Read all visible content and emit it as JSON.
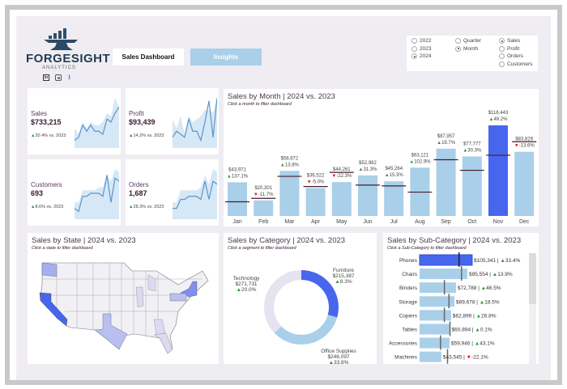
{
  "brand": {
    "name": "FORGESIGHT",
    "tagline": "ANALYTICS",
    "social": [
      "linkedin-icon",
      "instagram-icon",
      "download-icon"
    ]
  },
  "nav": {
    "sales_dashboard": "Sales Dashboard",
    "insights": "Insights"
  },
  "filters": {
    "years": [
      {
        "label": "2022",
        "selected": false
      },
      {
        "label": "2023",
        "selected": false
      },
      {
        "label": "2024",
        "selected": true
      }
    ],
    "granularity": [
      {
        "label": "Quarter",
        "selected": false
      },
      {
        "label": "Month",
        "selected": true
      }
    ],
    "metrics": [
      {
        "label": "Sales",
        "selected": true
      },
      {
        "label": "Profit",
        "selected": false
      },
      {
        "label": "Orders",
        "selected": false
      },
      {
        "label": "Customers",
        "selected": false
      }
    ]
  },
  "kpis": [
    {
      "label": "Sales",
      "value": "$733,215",
      "change": "20.4% vs. 2023",
      "spark": [
        2,
        3,
        7,
        5,
        7,
        5,
        5,
        4,
        9,
        8,
        11,
        13
      ],
      "band": [
        6,
        4,
        8,
        6,
        8,
        7,
        7,
        8,
        11,
        10,
        16,
        13
      ]
    },
    {
      "label": "Profit",
      "value": "$93,439",
      "change": "14.2% vs. 2023",
      "spark": [
        3,
        5,
        4,
        3,
        9,
        5,
        5,
        2,
        8,
        15,
        3,
        16
      ],
      "band": [
        9,
        6,
        10,
        4,
        10,
        8,
        9,
        10,
        12,
        12,
        11,
        16
      ]
    },
    {
      "label": "Customers",
      "value": "693",
      "change": "8.6% vs. 2023",
      "spark": [
        3,
        2,
        7,
        7,
        8,
        8,
        8,
        7,
        14,
        5,
        13,
        12
      ],
      "band": [
        5,
        5,
        9,
        9,
        9,
        9,
        10,
        10,
        14,
        12,
        16,
        15
      ]
    },
    {
      "label": "Orders",
      "value": "1,687",
      "change": "28.3% vs. 2023",
      "spark": [
        3,
        3,
        6,
        6,
        7,
        7,
        7,
        6,
        12,
        6,
        12,
        11
      ],
      "band": [
        5,
        5,
        9,
        9,
        9,
        9,
        9,
        10,
        14,
        11,
        16,
        15
      ]
    }
  ],
  "monthly": {
    "title": "Sales by Month | 2024 vs. 2023",
    "subtitle": "Click a month to filter dashboard",
    "chart_data": {
      "type": "bar",
      "categories": [
        "Jan",
        "Feb",
        "Mar",
        "Apr",
        "May",
        "Jun",
        "Jul",
        "Aug",
        "Sep",
        "Oct",
        "Nov",
        "Dec"
      ],
      "values": [
        43971,
        20301,
        58872,
        36522,
        44261,
        52982,
        45264,
        63121,
        87957,
        77777,
        118443,
        83829
      ],
      "labels": [
        "$43,971",
        "$20,301",
        "$58,872",
        "$36,522",
        "$44,261",
        "$52,982",
        "$45,264",
        "$63,121",
        "$87,957",
        "$77,777",
        "$118,443",
        "$83,829"
      ],
      "changes": [
        "137.1%",
        "-11.7%",
        "13.8%",
        "-5.0%",
        "-22.3%",
        "31.3%",
        "15.3%",
        "102.9%",
        "19.7%",
        "30.3%",
        "49.2%",
        "-13.6%"
      ],
      "change_pct": [
        137.1,
        -11.7,
        13.8,
        -5.0,
        -22.3,
        31.3,
        15.3,
        102.9,
        19.7,
        30.3,
        49.2,
        -13.6
      ],
      "selected": "Nov",
      "series": [
        {
          "name": "2024"
        },
        {
          "name": "2023"
        }
      ]
    }
  },
  "state": {
    "title": "Sales by State | 2024 vs. 2023",
    "subtitle": "Click a state to filter dashboard"
  },
  "category": {
    "title": "Sales by Category | 2024 vs. 2023",
    "subtitle": "Click a segment to filter dashboard",
    "chart_data": {
      "type": "pie",
      "items": [
        {
          "name": "Furniture",
          "value": 215387,
          "label": "$215,387",
          "change": "8.3%",
          "color": "#4766ee"
        },
        {
          "name": "Office Supplies",
          "value": 246097,
          "label": "$246,097",
          "change": "33.8%",
          "color": "#a9cfe9"
        },
        {
          "name": "Technology",
          "value": 271731,
          "label": "$271,731",
          "change": "20.0%",
          "color": "#e5e3f0"
        }
      ]
    }
  },
  "subcategory": {
    "title": "Sales by Sub-Category | 2024 vs. 2023",
    "subtitle": "Click a Sub-Category to filter dashboard",
    "chart_data": {
      "type": "bar",
      "categories": [
        "Phones",
        "Chairs",
        "Binders",
        "Storage",
        "Copiers",
        "Tables",
        "Accessories",
        "Machines"
      ],
      "values": [
        105341,
        95554,
        72788,
        69678,
        62899,
        60894,
        59946,
        43545
      ],
      "labels": [
        "$105,341",
        "$95,554",
        "$72,788",
        "$69,678",
        "$62,899",
        "$60,894",
        "$59,946",
        "$43,545"
      ],
      "changes": [
        "33.4%",
        "13.9%",
        "46.5%",
        "18.5%",
        "26.8%",
        "0.1%",
        "43.1%",
        "-22.1%"
      ],
      "change_pct": [
        33.4,
        13.9,
        46.5,
        18.5,
        26.8,
        0.1,
        43.1,
        -22.1
      ],
      "selected": "Phones"
    }
  }
}
